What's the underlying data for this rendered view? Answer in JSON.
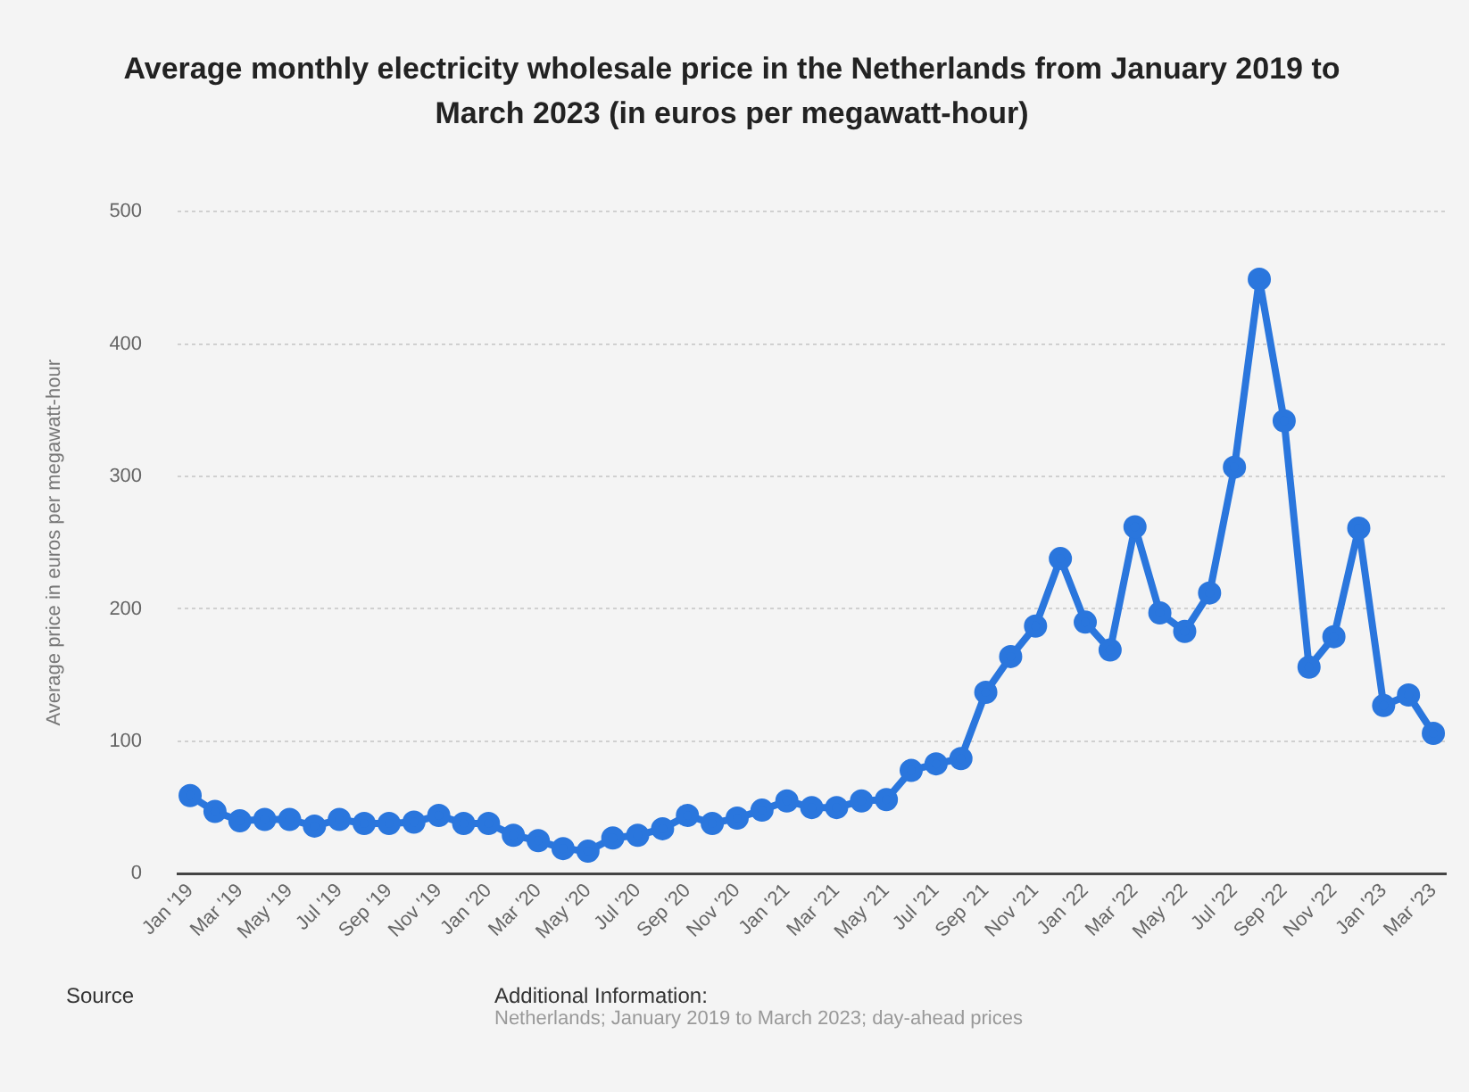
{
  "chart_data": {
    "type": "line",
    "title": "Average monthly electricity wholesale price in the Netherlands from January 2019 to March 2023 (in euros per megawatt-hour)",
    "ylabel": "Average price in euros per megawatt-hour",
    "categories": [
      "Jan '19",
      null,
      "Mar '19",
      null,
      "May '19",
      null,
      "Jul '19",
      null,
      "Sep '19",
      null,
      "Nov '19",
      null,
      "Jan '20",
      null,
      "Mar '20",
      null,
      "May '20",
      null,
      "Jul '20",
      null,
      "Sep '20",
      null,
      "Nov '20",
      null,
      "Jan '21",
      null,
      "Mar '21",
      null,
      "May '21",
      null,
      "Jul '21",
      null,
      "Sep '21",
      null,
      "Nov '21",
      null,
      "Jan '22",
      null,
      "Mar '22",
      null,
      "May '22",
      null,
      "Jul '22",
      null,
      "Sep '22",
      null,
      "Nov '22",
      null,
      "Jan '23",
      null,
      "Mar '23"
    ],
    "series": [
      {
        "color": "#2a76dd",
        "values": [
          59,
          47,
          40,
          41,
          41,
          36,
          41,
          38,
          38,
          39,
          44,
          38,
          38,
          29,
          25,
          19,
          17,
          27,
          29,
          34,
          44,
          38,
          42,
          48,
          55,
          50,
          50,
          55,
          56,
          78,
          83,
          87,
          137,
          164,
          187,
          238,
          190,
          169,
          262,
          197,
          183,
          212,
          307,
          449,
          342,
          156,
          179,
          261,
          127,
          135,
          106
        ]
      }
    ],
    "ylim": [
      0,
      500
    ],
    "yticks": [
      0,
      100,
      200,
      300,
      400,
      500
    ],
    "grid": "y",
    "marker": "circle",
    "line_style": "solid",
    "annotations": [
      "Source",
      "Additional Information:",
      "Netherlands; January 2019 to March 2023; day-ahead prices"
    ]
  }
}
